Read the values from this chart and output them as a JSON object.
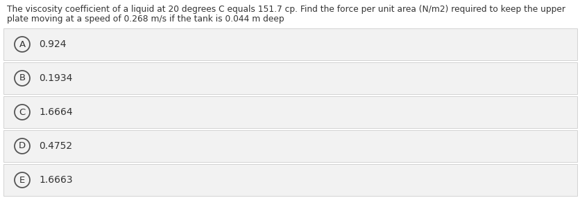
{
  "question_line1": "The viscosity coefficient of a liquid at 20 degrees C equals 151.7 cp. Find the force per unit area (N/m2) required to keep the upper",
  "question_line2": "plate moving at a speed of 0.268 m/s if the tank is 0.044 m deep",
  "options": [
    {
      "label": "A",
      "text": "0.924"
    },
    {
      "label": "B",
      "text": "0.1934"
    },
    {
      "label": "C",
      "text": "1.6664"
    },
    {
      "label": "D",
      "text": "0.4752"
    },
    {
      "label": "E",
      "text": "1.6663"
    }
  ],
  "bg_color": "#ffffff",
  "option_bg_color": "#f2f2f2",
  "option_border_color": "#cccccc",
  "text_color": "#333333",
  "circle_edge_color": "#555555",
  "question_fontsize": 8.8,
  "option_fontsize": 10.0,
  "label_fontsize": 9.5
}
